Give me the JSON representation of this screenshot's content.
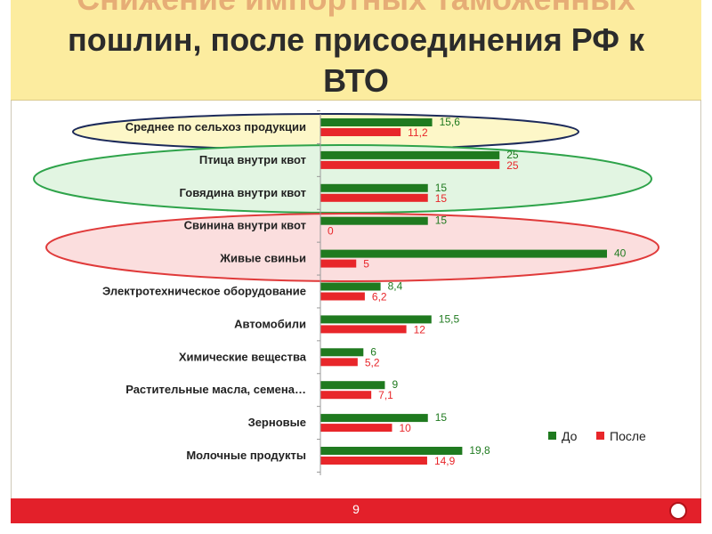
{
  "slide": {
    "title_line1": "Снижение импортных таможенных",
    "title_line2": "пошлин, после присоединения РФ к",
    "title_line3": "ВТО",
    "page_number": "9"
  },
  "colors": {
    "before": "#1f7a1f",
    "after": "#e8262a",
    "ellipse_yellow_fill": "#fdf7c8",
    "ellipse_yellow_stroke": "#1c2a5a",
    "ellipse_green_fill": "#e2f5e2",
    "ellipse_green_stroke": "#2ea34a",
    "ellipse_red_fill": "#fbdede",
    "ellipse_red_stroke": "#e03a3a"
  },
  "chart_data": {
    "type": "bar",
    "orientation": "horizontal",
    "categories": [
      "Среднее по сельхоз продукции",
      "Птица внутри квот",
      "Говядина внутри квот",
      "Свинина внутри квот",
      "Живые свиньи",
      "Электротехническое оборудование",
      "Автомобили",
      "Химические вещества",
      "Растительные масла, семена…",
      "Зерновые",
      "Молочные продукты"
    ],
    "series": [
      {
        "name": "До",
        "values": [
          15.6,
          25,
          15,
          15,
          40,
          8.4,
          15.5,
          6,
          9,
          15,
          19.8
        ],
        "labels": [
          "15,6",
          "25",
          "15",
          "15",
          "40",
          "8,4",
          "15,5",
          "6",
          "9",
          "15",
          "19,8"
        ]
      },
      {
        "name": "После",
        "values": [
          11.2,
          25,
          15,
          0,
          5,
          6.2,
          12,
          5.2,
          7.1,
          10,
          14.9
        ],
        "labels": [
          "11,2",
          "25",
          "15",
          "0",
          "5",
          "6,2",
          "12",
          "5,2",
          "7,1",
          "10",
          "14,9"
        ]
      }
    ],
    "legend_position": "bottom-right",
    "grid": false
  }
}
